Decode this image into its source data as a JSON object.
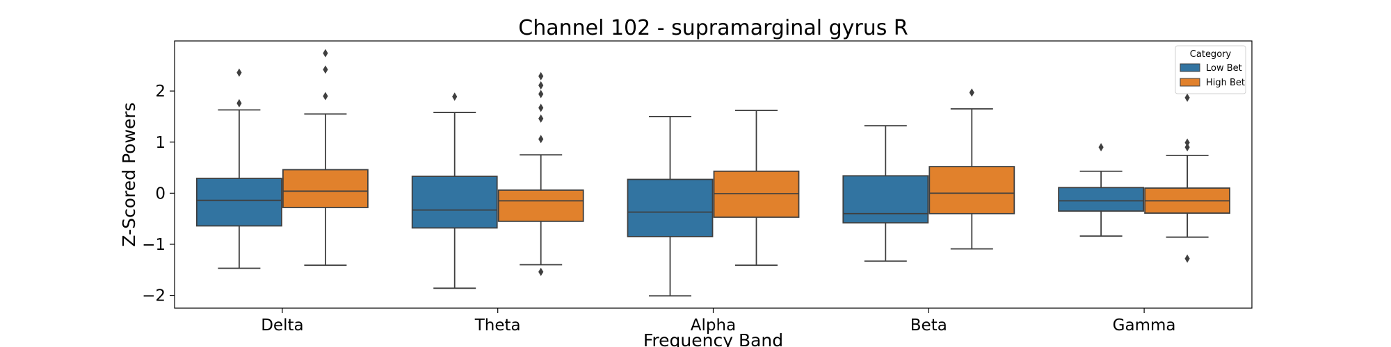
{
  "chart_data": {
    "type": "box",
    "title": "Channel 102 - supramarginal gyrus R",
    "xlabel": "Frequency Band",
    "ylabel": "Z-Scored Powers",
    "categories": [
      "Delta",
      "Theta",
      "Alpha",
      "Beta",
      "Gamma"
    ],
    "ylim": [
      -2.25,
      2.98
    ],
    "yticks": [
      -2,
      -1,
      0,
      1,
      2
    ],
    "ytick_labels": [
      "−2",
      "−1",
      "0",
      "1",
      "2"
    ],
    "grid": false,
    "legend": {
      "title": "Category",
      "placement": "top-right"
    },
    "series": [
      {
        "name": "Low Bet",
        "color": "#3274a1",
        "boxes": [
          {
            "whisker_low": -1.47,
            "q1": -0.64,
            "median": -0.14,
            "q3": 0.29,
            "whisker_high": 1.63,
            "outliers": [
              1.76,
              2.36
            ]
          },
          {
            "whisker_low": -1.86,
            "q1": -0.68,
            "median": -0.33,
            "q3": 0.33,
            "whisker_high": 1.58,
            "outliers": [
              1.89
            ]
          },
          {
            "whisker_low": -2.01,
            "q1": -0.85,
            "median": -0.37,
            "q3": 0.27,
            "whisker_high": 1.5,
            "outliers": []
          },
          {
            "whisker_low": -1.33,
            "q1": -0.58,
            "median": -0.4,
            "q3": 0.34,
            "whisker_high": 1.32,
            "outliers": []
          },
          {
            "whisker_low": -0.84,
            "q1": -0.35,
            "median": -0.15,
            "q3": 0.11,
            "whisker_high": 0.43,
            "outliers": [
              0.9
            ]
          }
        ]
      },
      {
        "name": "High Bet",
        "color": "#e1812c",
        "boxes": [
          {
            "whisker_low": -1.41,
            "q1": -0.28,
            "median": 0.04,
            "q3": 0.46,
            "whisker_high": 1.55,
            "outliers": [
              1.9,
              2.42,
              2.74
            ]
          },
          {
            "whisker_low": -1.4,
            "q1": -0.55,
            "median": -0.15,
            "q3": 0.06,
            "whisker_high": 0.75,
            "outliers": [
              -1.54,
              1.06,
              1.46,
              1.67,
              1.94,
              2.11,
              2.29
            ]
          },
          {
            "whisker_low": -1.41,
            "q1": -0.47,
            "median": -0.01,
            "q3": 0.43,
            "whisker_high": 1.62,
            "outliers": []
          },
          {
            "whisker_low": -1.09,
            "q1": -0.4,
            "median": 0.0,
            "q3": 0.52,
            "whisker_high": 1.65,
            "outliers": [
              1.97
            ]
          },
          {
            "whisker_low": -0.86,
            "q1": -0.39,
            "median": -0.15,
            "q3": 0.1,
            "whisker_high": 0.74,
            "outliers": [
              -1.28,
              0.9,
              0.99,
              1.87
            ]
          }
        ]
      }
    ]
  }
}
